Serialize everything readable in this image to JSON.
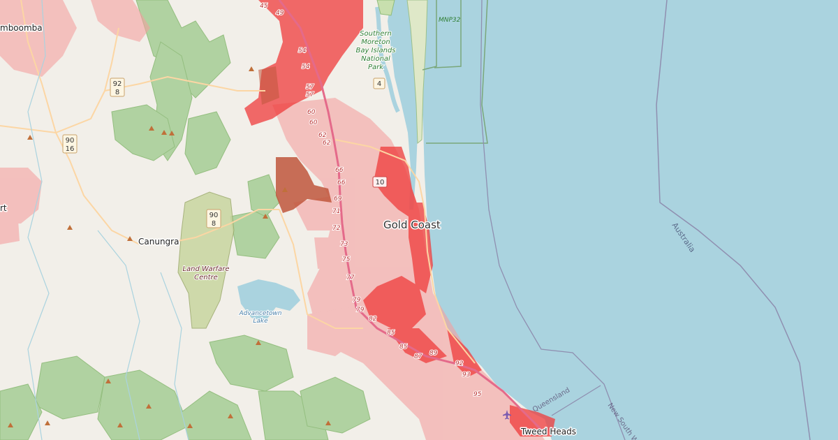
{
  "map": {
    "places": {
      "gold_coast": "Gold Coast",
      "canungra": "Canungra",
      "tweed_heads": "Tweed Heads",
      "jimboomba": "mboomba",
      "left_edge": "rt"
    },
    "parks": {
      "southern_moreton": [
        "Southern",
        "Moreton",
        "Bay Islands",
        "National",
        "Park"
      ],
      "mnp": "MNP32"
    },
    "military": [
      "Land Warfare",
      "Centre"
    ],
    "water": [
      "Advancetown",
      "Lake"
    ],
    "borders": {
      "australia": "Australia",
      "queensland": "Queensland",
      "nsw": "New South W"
    },
    "route_shields": [
      {
        "id": "r92_8",
        "lines": [
          "92",
          "8"
        ]
      },
      {
        "id": "r90_16",
        "lines": [
          "90",
          "16"
        ]
      },
      {
        "id": "r90_8",
        "lines": [
          "90",
          "8"
        ]
      },
      {
        "id": "r4",
        "lines": [
          "4"
        ]
      },
      {
        "id": "r10",
        "lines": [
          "10"
        ]
      }
    ],
    "motorway_exits": [
      "45",
      "49",
      "54",
      "54",
      "57",
      "57",
      "60",
      "60",
      "62",
      "62",
      "66",
      "66",
      "69",
      "71",
      "72",
      "73",
      "75",
      "77",
      "79",
      "79",
      "82",
      "85",
      "85",
      "87",
      "89",
      "92",
      "93",
      "95"
    ],
    "colors": {
      "land": "#f2efe9",
      "sea": "#aad3df",
      "park": "#c8dfae",
      "forest": "#add19e",
      "overlay_dark": "#ef3b3b",
      "overlay_light": "#f4a0a0",
      "overlay_brown": "#c0563c",
      "motorway": "#e46a8a",
      "primary": "#fcd6a4"
    }
  }
}
